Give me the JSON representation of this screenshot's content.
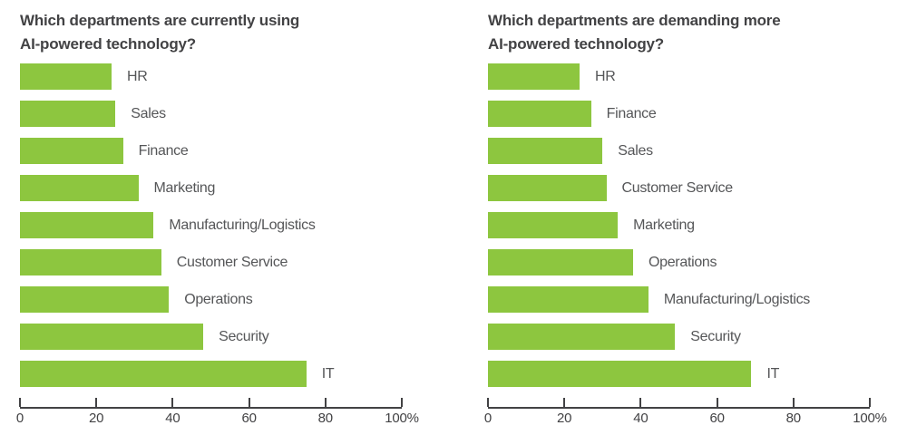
{
  "colors": {
    "bar_green": "#8dc63f",
    "title_text": "#424244",
    "label_text": "#555658",
    "axis": "#424244",
    "background": "#ffffff"
  },
  "chart_data": [
    {
      "type": "bar",
      "orientation": "horizontal",
      "title": "Which departments are currently using AI-powered technology?",
      "title_lines": [
        "Which departments are currently using",
        "AI-powered technology?"
      ],
      "categories": [
        "HR",
        "Sales",
        "Finance",
        "Marketing",
        "Manufacturing/Logistics",
        "Customer Service",
        "Operations",
        "Security",
        "IT"
      ],
      "values": [
        24,
        25,
        27,
        31,
        35,
        37,
        39,
        48,
        75
      ],
      "unit": "%",
      "xlim": [
        0,
        100
      ],
      "xticks": [
        0,
        20,
        40,
        60,
        80,
        100
      ],
      "xtick_labels": [
        "0",
        "20",
        "40",
        "60",
        "80",
        "100%"
      ],
      "bar_color": "#8dc63f",
      "grid": false,
      "legend": false,
      "category_label_position": "right-of-bar"
    },
    {
      "type": "bar",
      "orientation": "horizontal",
      "title": "Which departments are demanding more AI-powered technology?",
      "title_lines": [
        "Which departments are demanding more",
        "AI-powered technology?"
      ],
      "categories": [
        "HR",
        "Finance",
        "Sales",
        "Customer Service",
        "Marketing",
        "Operations",
        "Manufacturing/Logistics",
        "Security",
        "IT"
      ],
      "values": [
        24,
        27,
        30,
        31,
        34,
        38,
        42,
        49,
        69
      ],
      "unit": "%",
      "xlim": [
        0,
        100
      ],
      "xticks": [
        0,
        20,
        40,
        60,
        80,
        100
      ],
      "xtick_labels": [
        "0",
        "20",
        "40",
        "60",
        "80",
        "100%"
      ],
      "bar_color": "#8dc63f",
      "grid": false,
      "legend": false,
      "category_label_position": "right-of-bar"
    }
  ]
}
